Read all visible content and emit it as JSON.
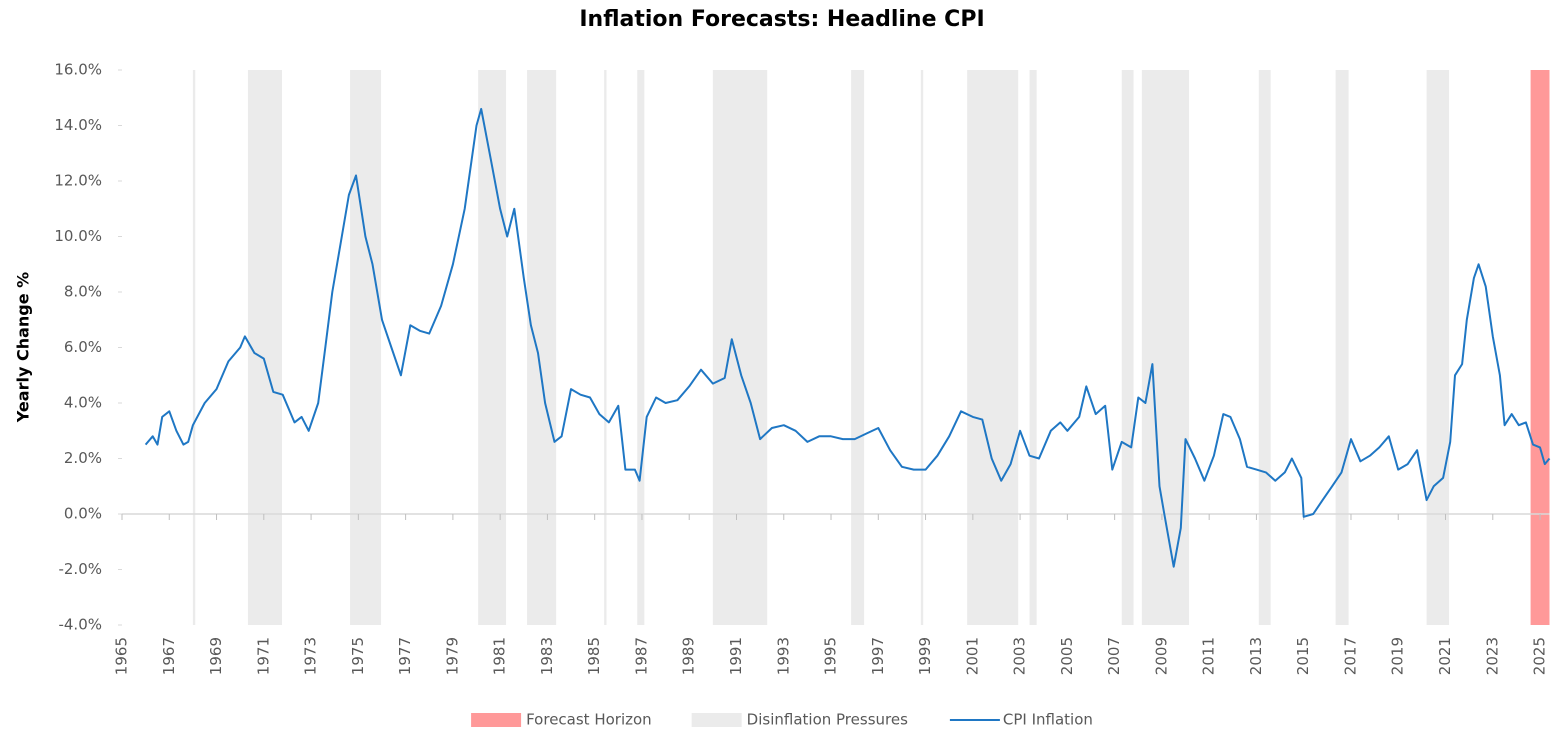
{
  "chart_data": {
    "type": "line",
    "title": "Inflation Forecasts: Headline CPI",
    "y_label": "Yearly Change %",
    "xlim": [
      1965,
      2025.4
    ],
    "xticks": [
      1965,
      1967,
      1969,
      1971,
      1973,
      1975,
      1977,
      1979,
      1981,
      1983,
      1985,
      1987,
      1989,
      1991,
      1993,
      1995,
      1997,
      1999,
      2001,
      2003,
      2005,
      2007,
      2009,
      2011,
      2013,
      2015,
      2017,
      2019,
      2021,
      2023,
      2025
    ],
    "ylim": [
      -4,
      16
    ],
    "yticks": [
      {
        "value": -4,
        "label": "-4.0%"
      },
      {
        "value": -2,
        "label": "-2.0%"
      },
      {
        "value": 0,
        "label": "0.0%"
      },
      {
        "value": 2,
        "label": "2.0%"
      },
      {
        "value": 4,
        "label": "4.0%"
      },
      {
        "value": 6,
        "label": "6.0%"
      },
      {
        "value": 8,
        "label": "8.0%"
      },
      {
        "value": 10,
        "label": "10.0%"
      },
      {
        "value": 12,
        "label": "12.0%"
      },
      {
        "value": 14,
        "label": "14.0%"
      },
      {
        "value": 16,
        "label": "16.0%"
      }
    ],
    "shaded_regions": [
      {
        "name": "Forecast Horizon",
        "color": "#ff9999",
        "ranges": [
          [
            2024.6,
            2025.4
          ]
        ]
      },
      {
        "name": "Disinflation Pressures",
        "color": "#ebebeb",
        "ranges": [
          [
            1968.0,
            1968.1
          ],
          [
            1970.33,
            1971.77
          ],
          [
            1974.65,
            1975.96
          ],
          [
            1980.07,
            1981.25
          ],
          [
            1982.14,
            1983.37
          ],
          [
            1985.4,
            1985.5
          ],
          [
            1986.8,
            1987.1
          ],
          [
            1990.0,
            1992.3
          ],
          [
            1995.85,
            1996.4
          ],
          [
            1998.8,
            1998.9
          ],
          [
            2000.76,
            2002.92
          ],
          [
            2003.4,
            2003.7
          ],
          [
            2007.3,
            2007.8
          ],
          [
            2008.15,
            2010.15
          ],
          [
            2013.1,
            2013.6
          ],
          [
            2016.35,
            2016.9
          ],
          [
            2020.2,
            2021.15
          ]
        ]
      }
    ],
    "x": [
      1966.0,
      1966.3,
      1966.5,
      1966.7,
      1967.0,
      1967.3,
      1967.6,
      1967.8,
      1968.0,
      1968.5,
      1969.0,
      1969.5,
      1970.0,
      1970.2,
      1970.6,
      1971.0,
      1971.4,
      1971.8,
      1972.3,
      1972.6,
      1972.9,
      1973.3,
      1973.6,
      1973.9,
      1974.3,
      1974.6,
      1974.9,
      1975.3,
      1975.6,
      1976.0,
      1976.4,
      1976.8,
      1977.2,
      1977.6,
      1978.0,
      1978.5,
      1979.0,
      1979.5,
      1980.0,
      1980.2,
      1980.6,
      1981.0,
      1981.3,
      1981.6,
      1982.0,
      1982.3,
      1982.6,
      1982.9,
      1983.3,
      1983.6,
      1984.0,
      1984.4,
      1984.8,
      1985.2,
      1985.6,
      1986.0,
      1986.3,
      1986.7,
      1986.9,
      1987.2,
      1987.6,
      1988.0,
      1988.5,
      1989.0,
      1989.5,
      1990.0,
      1990.5,
      1990.8,
      1991.2,
      1991.6,
      1992.0,
      1992.5,
      1993.0,
      1993.5,
      1994.0,
      1994.5,
      1995.0,
      1995.5,
      1996.0,
      1996.5,
      1997.0,
      1997.5,
      1998.0,
      1998.5,
      1999.0,
      1999.5,
      2000.0,
      2000.5,
      2001.0,
      2001.4,
      2001.8,
      2002.2,
      2002.6,
      2003.0,
      2003.4,
      2003.8,
      2004.3,
      2004.7,
      2005.0,
      2005.5,
      2005.8,
      2006.2,
      2006.6,
      2006.9,
      2007.3,
      2007.7,
      2008.0,
      2008.3,
      2008.6,
      2008.9,
      2009.1,
      2009.5,
      2009.8,
      2010.0,
      2010.4,
      2010.8,
      2011.2,
      2011.6,
      2011.9,
      2012.3,
      2012.6,
      2013.0,
      2013.4,
      2013.8,
      2014.2,
      2014.5,
      2014.9,
      2015.0,
      2015.4,
      2015.8,
      2016.2,
      2016.6,
      2017.0,
      2017.4,
      2017.8,
      2018.2,
      2018.6,
      2019.0,
      2019.4,
      2019.8,
      2020.2,
      2020.5,
      2020.9,
      2021.2,
      2021.4,
      2021.7,
      2021.9,
      2022.2,
      2022.4,
      2022.7,
      2023.0,
      2023.3,
      2023.5,
      2023.8,
      2024.1,
      2024.4,
      2024.7,
      2025.0,
      2025.2,
      2025.4
    ],
    "series": [
      {
        "name": "CPI Inflation",
        "color": "#1f77c4",
        "values": [
          2.5,
          2.8,
          2.5,
          3.5,
          3.7,
          3.0,
          2.5,
          2.6,
          3.2,
          4.0,
          4.5,
          5.5,
          6.0,
          6.4,
          5.8,
          5.6,
          4.4,
          4.3,
          3.3,
          3.5,
          3.0,
          4.0,
          6.0,
          8.0,
          10.0,
          11.5,
          12.2,
          10.0,
          9.0,
          7.0,
          6.0,
          5.0,
          6.8,
          6.6,
          6.5,
          7.5,
          9.0,
          11.0,
          14.0,
          14.6,
          12.8,
          11.0,
          10.0,
          11.0,
          8.5,
          6.8,
          5.8,
          4.0,
          2.6,
          2.8,
          4.5,
          4.3,
          4.2,
          3.6,
          3.3,
          3.9,
          1.6,
          1.6,
          1.2,
          3.5,
          4.2,
          4.0,
          4.1,
          4.6,
          5.2,
          4.7,
          4.9,
          6.3,
          5.0,
          4.0,
          2.7,
          3.1,
          3.2,
          3.0,
          2.6,
          2.8,
          2.8,
          2.7,
          2.7,
          2.9,
          3.1,
          2.3,
          1.7,
          1.6,
          1.6,
          2.1,
          2.8,
          3.7,
          3.5,
          3.4,
          2.0,
          1.2,
          1.8,
          3.0,
          2.1,
          2.0,
          3.0,
          3.3,
          3.0,
          3.5,
          4.6,
          3.6,
          3.9,
          1.6,
          2.6,
          2.4,
          4.2,
          4.0,
          5.4,
          1.0,
          0.0,
          -1.9,
          -0.5,
          2.7,
          2.0,
          1.2,
          2.1,
          3.6,
          3.5,
          2.7,
          1.7,
          1.6,
          1.5,
          1.2,
          1.5,
          2.0,
          1.3,
          -0.1,
          0.0,
          0.5,
          1.0,
          1.5,
          2.7,
          1.9,
          2.1,
          2.4,
          2.8,
          1.6,
          1.8,
          2.3,
          0.5,
          1.0,
          1.3,
          2.6,
          5.0,
          5.4,
          7.0,
          8.5,
          9.0,
          8.2,
          6.4,
          5.0,
          3.2,
          3.6,
          3.2,
          3.3,
          2.5,
          2.4,
          1.8,
          2.0
        ]
      }
    ]
  }
}
